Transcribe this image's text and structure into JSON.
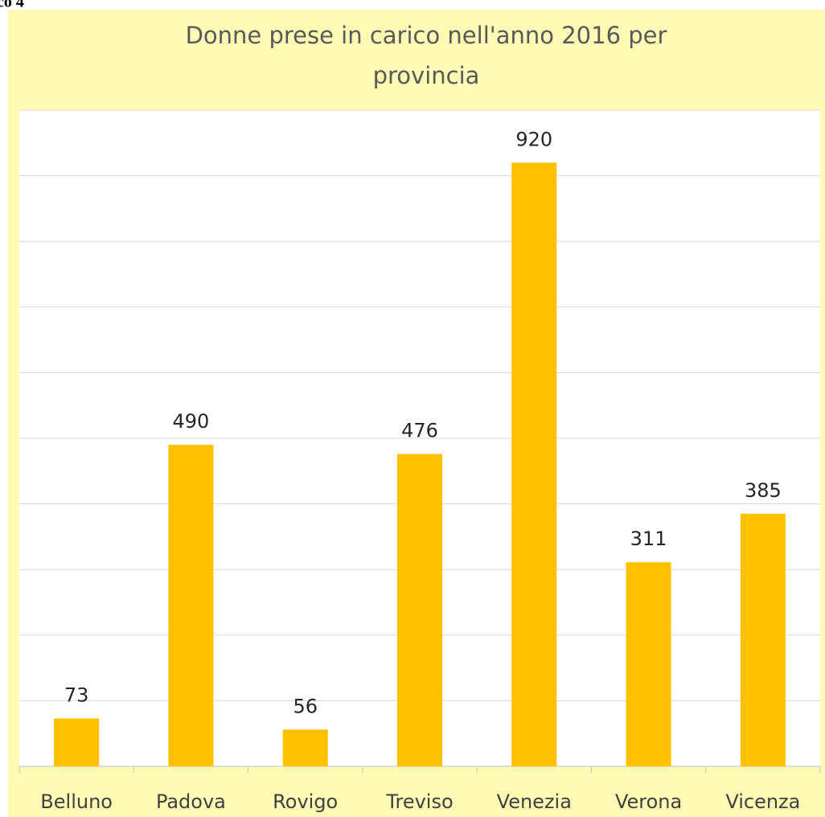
{
  "caption": "co 4",
  "chart_data": {
    "type": "bar",
    "title": "Donne prese in carico nell'anno 2016 per",
    "title_line2": "provincia",
    "categories": [
      "Belluno",
      "Padova",
      "Rovigo",
      "Treviso",
      "Venezia",
      "Verona",
      "Vicenza"
    ],
    "values": [
      73,
      490,
      56,
      476,
      920,
      311,
      385
    ],
    "color": "#ffc000",
    "ylim": [
      0,
      1000
    ],
    "yticks": [
      0,
      100,
      200,
      300,
      400,
      500,
      600,
      700,
      800,
      900,
      1000
    ],
    "grid": true
  }
}
